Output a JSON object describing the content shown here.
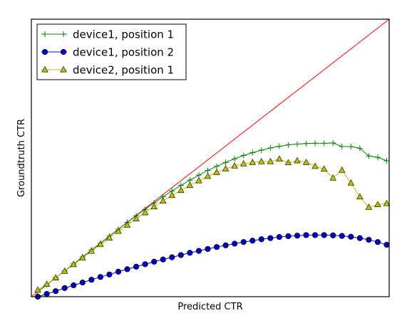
{
  "chart_data": {
    "type": "line",
    "xlabel": "Predicted CTR",
    "ylabel": "Groundtruth CTR",
    "xlim": [
      0,
      1
    ],
    "ylim": [
      0,
      1
    ],
    "grid": false,
    "legend_position": "top-left",
    "reference_line": {
      "x": [
        0,
        1
      ],
      "y": [
        0,
        1
      ],
      "color": "#ff0000"
    },
    "x": [
      0.018,
      0.043,
      0.068,
      0.093,
      0.118,
      0.143,
      0.168,
      0.193,
      0.218,
      0.243,
      0.268,
      0.293,
      0.318,
      0.343,
      0.368,
      0.393,
      0.418,
      0.443,
      0.468,
      0.493,
      0.518,
      0.543,
      0.568,
      0.593,
      0.618,
      0.643,
      0.668,
      0.693,
      0.718,
      0.743,
      0.768,
      0.793,
      0.818,
      0.843,
      0.868,
      0.893,
      0.918,
      0.943,
      0.968,
      0.993
    ],
    "series": [
      {
        "name": "device1, position 1",
        "color": "#008000",
        "marker": "plus",
        "values": [
          0.018,
          0.043,
          0.068,
          0.093,
          0.118,
          0.143,
          0.168,
          0.193,
          0.218,
          0.243,
          0.268,
          0.292,
          0.315,
          0.338,
          0.36,
          0.381,
          0.401,
          0.42,
          0.438,
          0.455,
          0.47,
          0.484,
          0.497,
          0.509,
          0.519,
          0.528,
          0.536,
          0.542,
          0.547,
          0.55,
          0.552,
          0.553,
          0.553,
          0.554,
          0.541,
          0.541,
          0.535,
          0.507,
          0.502,
          0.49
        ]
      },
      {
        "name": "device1, position 2",
        "color": "#0000bf",
        "marker": "circle",
        "values": [
          0.0,
          0.01,
          0.02,
          0.031,
          0.041,
          0.051,
          0.061,
          0.071,
          0.08,
          0.09,
          0.099,
          0.108,
          0.117,
          0.126,
          0.134,
          0.142,
          0.15,
          0.158,
          0.165,
          0.172,
          0.179,
          0.185,
          0.191,
          0.197,
          0.202,
          0.207,
          0.211,
          0.215,
          0.218,
          0.22,
          0.222,
          0.222,
          0.222,
          0.221,
          0.219,
          0.216,
          0.211,
          0.205,
          0.197,
          0.187
        ]
      },
      {
        "name": "device2, position 1",
        "color": "#bfbf00",
        "marker": "triangle",
        "values": [
          0.024,
          0.045,
          0.068,
          0.092,
          0.116,
          0.14,
          0.164,
          0.188,
          0.212,
          0.236,
          0.258,
          0.281,
          0.303,
          0.324,
          0.345,
          0.365,
          0.383,
          0.401,
          0.418,
          0.434,
          0.448,
          0.461,
          0.471,
          0.479,
          0.484,
          0.487,
          0.487,
          0.496,
          0.483,
          0.49,
          0.484,
          0.47,
          0.46,
          0.428,
          0.456,
          0.41,
          0.36,
          0.322,
          0.332,
          0.336
        ]
      }
    ]
  }
}
